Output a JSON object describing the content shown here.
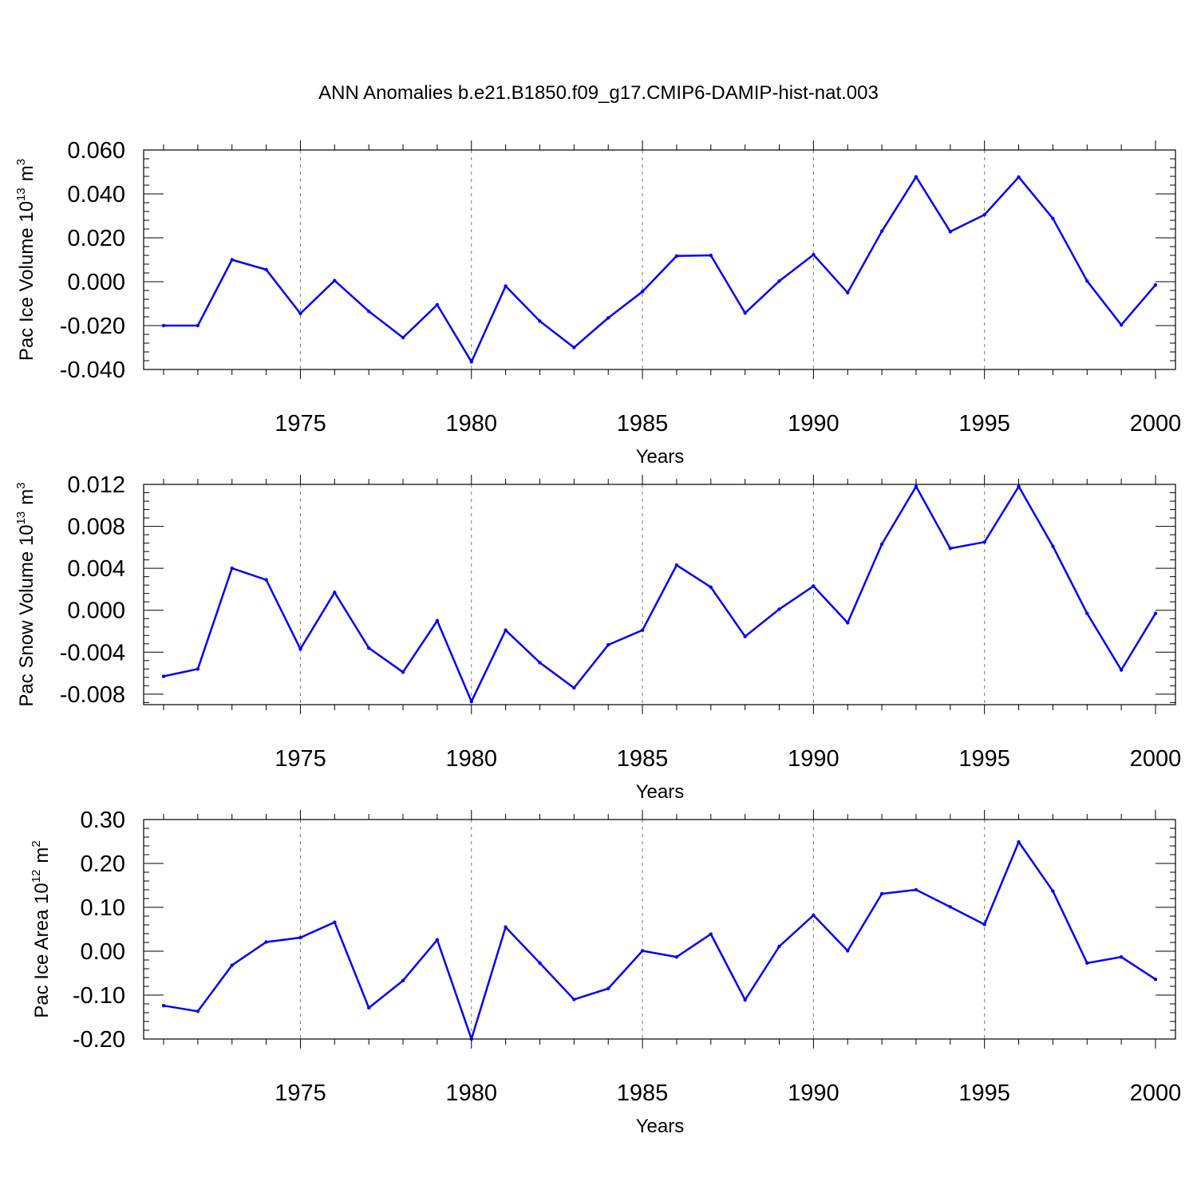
{
  "title": "ANN Anomalies b.e21.B1850.f09_g17.CMIP6-DAMIP-hist-nat.003",
  "colors": {
    "series": "#0000ff",
    "axis": "#000000",
    "grid": "#777777"
  },
  "chart_data": [
    {
      "type": "line",
      "ylabel_main": "Pac Ice Volume 10",
      "ylabel_sup": "13",
      "ylabel_unit": "m",
      "ylabel_unit_sup": "3",
      "xlabel": "Years",
      "xlim": [
        1971,
        2000
      ],
      "ylim": [
        -0.04,
        0.06
      ],
      "yticks": [
        -0.04,
        -0.02,
        0.0,
        0.02,
        0.04,
        0.06
      ],
      "ytick_labels": [
        "-0.040",
        "-0.020",
        "0.000",
        "0.020",
        "0.040",
        "0.060"
      ],
      "xticks": [
        1975,
        1980,
        1985,
        1990,
        1995,
        2000
      ],
      "xtick_labels": [
        "1975",
        "1980",
        "1985",
        "1990",
        "1995",
        "2000"
      ],
      "x": [
        1971,
        1972,
        1973,
        1974,
        1975,
        1976,
        1977,
        1978,
        1979,
        1980,
        1981,
        1982,
        1983,
        1984,
        1985,
        1986,
        1987,
        1988,
        1989,
        1990,
        1991,
        1992,
        1993,
        1994,
        1995,
        1996,
        1997,
        1998,
        1999,
        2000
      ],
      "values": [
        -0.02,
        -0.02,
        0.01,
        0.0055,
        -0.0145,
        0.0005,
        -0.0135,
        -0.0255,
        -0.0105,
        -0.0365,
        -0.002,
        -0.018,
        -0.03,
        -0.0165,
        -0.0045,
        0.0117,
        0.012,
        -0.0143,
        0.0003,
        0.0123,
        -0.005,
        0.023,
        0.0478,
        0.0228,
        0.0305,
        0.0477,
        0.0288,
        0.0003,
        -0.0197,
        -0.0015
      ]
    },
    {
      "type": "line",
      "ylabel_main": "Pac Snow Volume 10",
      "ylabel_sup": "13",
      "ylabel_unit": "m",
      "ylabel_unit_sup": "3",
      "xlabel": "Years",
      "xlim": [
        1971,
        2000
      ],
      "ylim": [
        -0.009,
        0.012
      ],
      "yticks": [
        -0.008,
        -0.004,
        0.0,
        0.004,
        0.008,
        0.012
      ],
      "ytick_labels": [
        "-0.008",
        "-0.004",
        "0.000",
        "0.004",
        "0.008",
        "0.012"
      ],
      "xticks": [
        1975,
        1980,
        1985,
        1990,
        1995,
        2000
      ],
      "xtick_labels": [
        "1975",
        "1980",
        "1985",
        "1990",
        "1995",
        "2000"
      ],
      "x": [
        1971,
        1972,
        1973,
        1974,
        1975,
        1976,
        1977,
        1978,
        1979,
        1980,
        1981,
        1982,
        1983,
        1984,
        1985,
        1986,
        1987,
        1988,
        1989,
        1990,
        1991,
        1992,
        1993,
        1994,
        1995,
        1996,
        1997,
        1998,
        1999,
        2000
      ],
      "values": [
        -0.0063,
        -0.0056,
        0.004,
        0.0029,
        -0.0037,
        0.0017,
        -0.0036,
        -0.0059,
        -0.001,
        -0.0087,
        -0.0019,
        -0.005,
        -0.0074,
        -0.0033,
        -0.0019,
        0.0043,
        0.0022,
        -0.0025,
        0.0001,
        0.0023,
        -0.0012,
        0.0063,
        0.0118,
        0.0059,
        0.0065,
        0.0118,
        0.0061,
        -0.0003,
        -0.0057,
        -0.0003
      ]
    },
    {
      "type": "line",
      "ylabel_main": "Pac Ice Area 10",
      "ylabel_sup": "12",
      "ylabel_unit": "m",
      "ylabel_unit_sup": "2",
      "xlabel": "Years",
      "xlim": [
        1971,
        2000
      ],
      "ylim": [
        -0.2,
        0.3
      ],
      "yticks": [
        -0.2,
        -0.1,
        0.0,
        0.1,
        0.2,
        0.3
      ],
      "ytick_labels": [
        "-0.20",
        "-0.10",
        "0.00",
        "0.10",
        "0.20",
        "0.30"
      ],
      "xticks": [
        1975,
        1980,
        1985,
        1990,
        1995,
        2000
      ],
      "xtick_labels": [
        "1975",
        "1980",
        "1985",
        "1990",
        "1995",
        "2000"
      ],
      "x": [
        1971,
        1972,
        1973,
        1974,
        1975,
        1976,
        1977,
        1978,
        1979,
        1980,
        1981,
        1982,
        1983,
        1984,
        1985,
        1986,
        1987,
        1988,
        1989,
        1990,
        1991,
        1992,
        1993,
        1994,
        1995,
        1996,
        1997,
        1998,
        1999,
        2000
      ],
      "values": [
        -0.124,
        -0.137,
        -0.032,
        0.021,
        0.031,
        0.066,
        -0.129,
        -0.067,
        0.026,
        -0.2,
        0.055,
        -0.027,
        -0.11,
        -0.085,
        0.001,
        -0.013,
        0.039,
        -0.111,
        0.011,
        0.082,
        0.001,
        0.131,
        0.14,
        0.101,
        0.061,
        0.249,
        0.137,
        -0.027,
        -0.013,
        -0.064
      ]
    }
  ]
}
